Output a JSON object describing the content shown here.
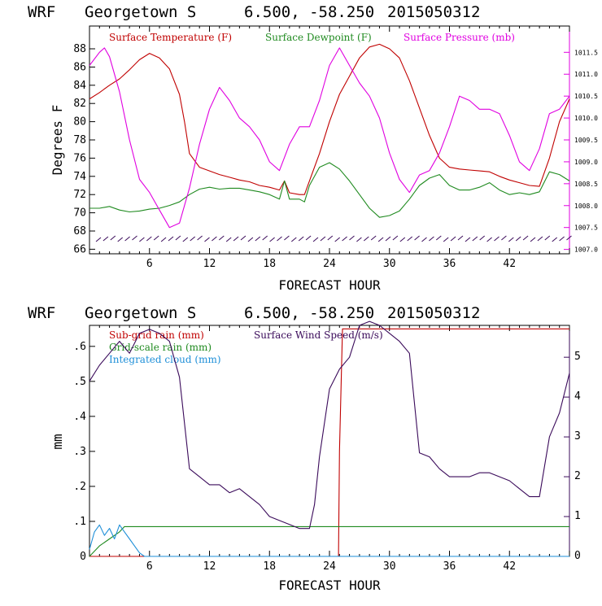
{
  "chart_data": [
    {
      "type": "line",
      "header": {
        "model": "WRF",
        "location": "Georgetown S",
        "coords": "6.500, -58.250",
        "run": "2015050312"
      },
      "xlabel": "FORECAST HOUR",
      "ylabel": "Degrees F",
      "xlim": [
        0,
        48
      ],
      "ylim": [
        65.5,
        90.5
      ],
      "x_ticks": [
        "6",
        "12",
        "18",
        "24",
        "30",
        "36",
        "42"
      ],
      "y_ticks": [
        "66",
        "68",
        "70",
        "72",
        "74",
        "76",
        "78",
        "80",
        "82",
        "84",
        "86",
        "88"
      ],
      "y2_ticks": [
        "1007.0",
        "1007.5",
        "1008.0",
        "1008.5",
        "1009.0",
        "1009.5",
        "1010.0",
        "1010.5",
        "1011.0",
        "1011.5"
      ],
      "y2lim": [
        1006.9,
        1012.1
      ],
      "legend": [
        "Surface Temperature (F)",
        "Surface Dewpoint (F)",
        "Surface Pressure (mb)"
      ],
      "colors": {
        "temperature": "#c00000",
        "dewpoint": "#1f8a1f",
        "pressure": "#e000e0",
        "wind_barbs": "#3a0a5a"
      },
      "series": [
        {
          "name": "Surface Temperature (F)",
          "axis": "left",
          "x": [
            0,
            1,
            2,
            3,
            4,
            5,
            6,
            7,
            8,
            9,
            9.5,
            10,
            11,
            12,
            13,
            14,
            15,
            16,
            17,
            18,
            19,
            19.5,
            20,
            21,
            21.5,
            22,
            23,
            24,
            25,
            26,
            27,
            28,
            29,
            30,
            31,
            32,
            33,
            34,
            35,
            36,
            37,
            38,
            39,
            40,
            41,
            42,
            43,
            44,
            45,
            46,
            47,
            48
          ],
          "y": [
            82.5,
            83.2,
            84,
            84.7,
            85.7,
            86.8,
            87.5,
            87,
            85.8,
            83,
            80,
            76.5,
            75,
            74.6,
            74.2,
            73.9,
            73.6,
            73.4,
            73,
            72.8,
            72.5,
            73.5,
            72.2,
            72,
            72,
            73.5,
            76.5,
            80,
            83,
            85,
            87,
            88.2,
            88.5,
            88,
            87,
            84.5,
            81.5,
            78.5,
            76,
            75,
            74.8,
            74.7,
            74.6,
            74.5,
            74,
            73.6,
            73.3,
            73,
            72.9,
            76,
            80,
            82.5
          ]
        },
        {
          "name": "Surface Dewpoint (F)",
          "axis": "left",
          "x": [
            0,
            1,
            2,
            3,
            4,
            5,
            6,
            7,
            8,
            9,
            10,
            11,
            12,
            13,
            14,
            15,
            16,
            17,
            18,
            19,
            19.5,
            20,
            21,
            21.5,
            22,
            23,
            24,
            25,
            26,
            27,
            28,
            29,
            30,
            31,
            32,
            33,
            34,
            35,
            36,
            37,
            38,
            39,
            40,
            41,
            42,
            43,
            44,
            45,
            46,
            47,
            48
          ],
          "y": [
            70.5,
            70.5,
            70.7,
            70.3,
            70.1,
            70.2,
            70.4,
            70.5,
            70.8,
            71.2,
            72,
            72.6,
            72.8,
            72.6,
            72.7,
            72.7,
            72.5,
            72.3,
            72,
            71.5,
            73.5,
            71.5,
            71.5,
            71.2,
            73,
            75,
            75.5,
            74.8,
            73.5,
            72,
            70.5,
            69.5,
            69.7,
            70.2,
            71.5,
            73,
            73.8,
            74.2,
            73,
            72.5,
            72.5,
            72.8,
            73.3,
            72.5,
            72,
            72.2,
            72,
            72.3,
            74.5,
            74.2,
            73.5
          ]
        },
        {
          "name": "Surface Pressure (mb)",
          "axis": "right",
          "x": [
            0,
            1,
            1.5,
            2,
            3,
            4,
            5,
            6,
            7,
            8,
            9,
            10,
            11,
            12,
            13,
            14,
            15,
            16,
            17,
            18,
            19,
            20,
            21,
            22,
            23,
            24,
            25,
            26,
            27,
            28,
            29,
            30,
            31,
            32,
            33,
            34,
            35,
            36,
            37,
            38,
            39,
            40,
            41,
            42,
            43,
            44,
            45,
            46,
            47,
            48
          ],
          "y": [
            1011.2,
            1011.5,
            1011.6,
            1011.4,
            1010.6,
            1009.5,
            1008.6,
            1008.3,
            1007.9,
            1007.5,
            1007.6,
            1008.4,
            1009.4,
            1010.2,
            1010.7,
            1010.4,
            1010.0,
            1009.8,
            1009.5,
            1009.0,
            1008.8,
            1009.4,
            1009.8,
            1009.8,
            1010.4,
            1011.2,
            1011.6,
            1011.2,
            1010.8,
            1010.5,
            1010.0,
            1009.2,
            1008.6,
            1008.3,
            1008.7,
            1008.8,
            1009.2,
            1009.8,
            1010.5,
            1010.4,
            1010.2,
            1010.2,
            1010.1,
            1009.6,
            1009.0,
            1008.8,
            1009.3,
            1010.1,
            1010.2,
            1010.5
          ]
        }
      ]
    },
    {
      "type": "line",
      "header": {
        "model": "WRF",
        "location": "Georgetown S",
        "coords": "6.500, -58.250",
        "run": "2015050312"
      },
      "xlabel": "FORECAST HOUR",
      "ylabel": "mm",
      "xlim": [
        0,
        48
      ],
      "ylim": [
        0,
        0.66
      ],
      "x_ticks": [
        "6",
        "12",
        "18",
        "24",
        "30",
        "36",
        "42"
      ],
      "y_ticks": [
        "0",
        ".1",
        ".2",
        ".3",
        ".4",
        ".5",
        ".6"
      ],
      "y2_ticks": [
        "0",
        "1",
        "2",
        "3",
        "4",
        "5"
      ],
      "y2lim": [
        0,
        5.8
      ],
      "legend": [
        "Sub-grid rain (mm)",
        "Surface Wind Speed (m/s)",
        "Grid-scale rain (mm)",
        "Integrated cloud (mm)"
      ],
      "colors": {
        "subgrid_rain": "#c00000",
        "wind_speed": "#3a0a5a",
        "gridscale_rain": "#1f8a1f",
        "cloud": "#1e8fd8"
      },
      "series": [
        {
          "name": "Sub-grid rain (mm)",
          "axis": "left",
          "x": [
            0,
            24.9,
            25,
            25.3,
            48
          ],
          "y": [
            0,
            0,
            0.3,
            0.65,
            0.65
          ]
        },
        {
          "name": "Grid-scale rain (mm)",
          "axis": "left",
          "x": [
            0,
            1,
            2,
            3,
            3.5,
            48
          ],
          "y": [
            0,
            0.03,
            0.05,
            0.07,
            0.085,
            0.085
          ]
        },
        {
          "name": "Integrated cloud (mm)",
          "axis": "left",
          "x": [
            0,
            0.5,
            1,
            1.5,
            2,
            2.5,
            3,
            3.5,
            4,
            4.5,
            5,
            5.5,
            6,
            48
          ],
          "y": [
            0.02,
            0.07,
            0.09,
            0.06,
            0.08,
            0.05,
            0.09,
            0.07,
            0.05,
            0.03,
            0.01,
            0,
            0,
            0
          ]
        },
        {
          "name": "Surface Wind Speed (m/s)",
          "axis": "right",
          "x": [
            0,
            1,
            2,
            3,
            4,
            5,
            6,
            7,
            8,
            9,
            10,
            11,
            12,
            13,
            14,
            15,
            16,
            17,
            18,
            19,
            20,
            21,
            22,
            22.5,
            23,
            24,
            25,
            26,
            27,
            28,
            29,
            30,
            31,
            32,
            33,
            34,
            35,
            36,
            37,
            38,
            39,
            40,
            41,
            42,
            43,
            44,
            45,
            46,
            47,
            48
          ],
          "y": [
            4.4,
            4.8,
            5.1,
            5.4,
            5.1,
            5.6,
            5.7,
            5.6,
            5.4,
            4.5,
            2.2,
            2.0,
            1.8,
            1.8,
            1.6,
            1.7,
            1.5,
            1.3,
            1.0,
            0.9,
            0.8,
            0.7,
            0.7,
            1.3,
            2.5,
            4.2,
            4.7,
            5.0,
            5.8,
            5.9,
            5.8,
            5.6,
            5.4,
            5.1,
            2.6,
            2.5,
            2.2,
            2.0,
            2.0,
            2.0,
            2.1,
            2.1,
            2.0,
            1.9,
            1.7,
            1.5,
            1.5,
            3.0,
            3.6,
            4.6
          ]
        }
      ]
    }
  ]
}
